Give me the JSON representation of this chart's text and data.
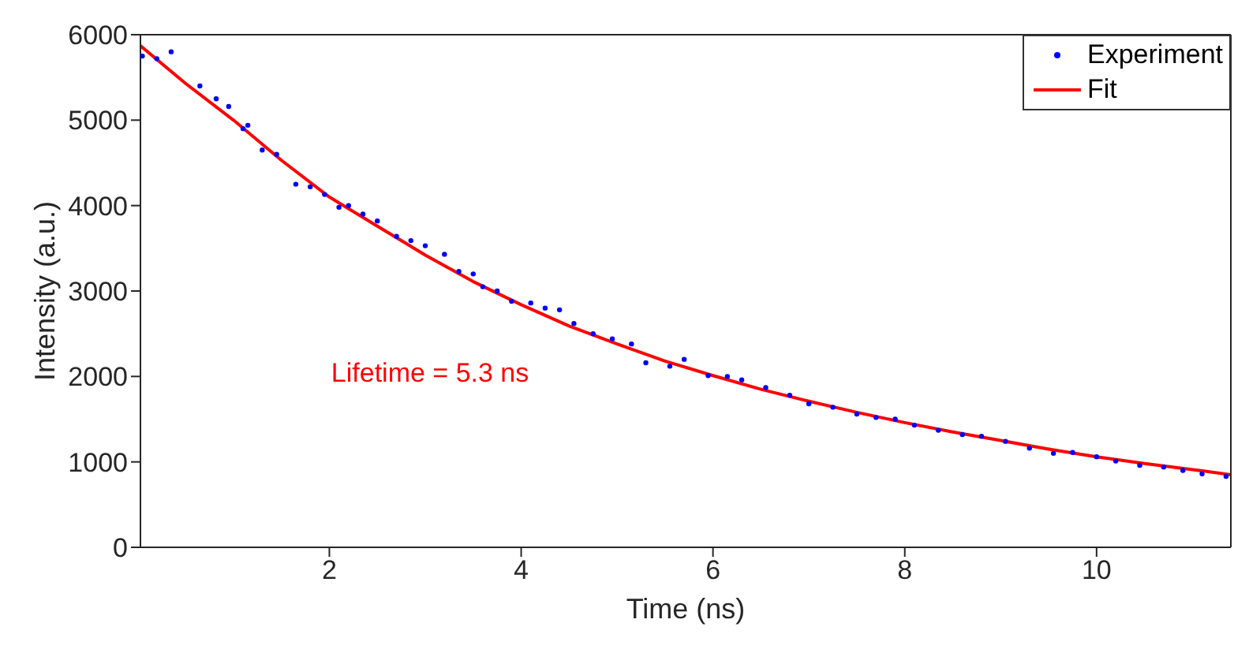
{
  "chart_data": {
    "type": "scatter",
    "xlabel": "Time (ns)",
    "ylabel": "Intensity (a.u.)",
    "xlim": [
      0.03,
      11.4
    ],
    "xticks": [
      2,
      4,
      6,
      8,
      10
    ],
    "ylim": [
      0,
      6000
    ],
    "yticks": [
      0,
      1000,
      2000,
      3000,
      4000,
      5000,
      6000
    ],
    "grid": false,
    "legend": "top right",
    "annotations": [
      "Lifetime = 5.3 ns"
    ],
    "series": [
      {
        "name": "Experiment",
        "color": "#0000ff",
        "marker": "circle",
        "x": [
          0.05,
          0.2,
          0.35,
          0.65,
          0.82,
          0.95,
          1.1,
          1.15,
          1.3,
          1.45,
          1.65,
          1.8,
          1.95,
          2.1,
          2.2,
          2.35,
          2.5,
          2.7,
          2.85,
          3.0,
          3.2,
          3.35,
          3.5,
          3.6,
          3.75,
          3.9,
          4.1,
          4.25,
          4.4,
          4.55,
          4.75,
          4.95,
          5.15,
          5.3,
          5.55,
          5.7,
          5.95,
          6.15,
          6.3,
          6.55,
          6.8,
          7.0,
          7.25,
          7.5,
          7.7,
          7.9,
          8.1,
          8.35,
          8.6,
          8.8,
          9.05,
          9.3,
          9.55,
          9.75,
          10.0,
          10.2,
          10.45,
          10.7,
          10.9,
          11.1,
          11.35
        ],
        "values": [
          5750,
          5720,
          5800,
          5400,
          5250,
          5160,
          4900,
          4940,
          4650,
          4600,
          4250,
          4220,
          4130,
          3980,
          4000,
          3900,
          3820,
          3640,
          3590,
          3530,
          3430,
          3230,
          3200,
          3050,
          3000,
          2880,
          2860,
          2800,
          2780,
          2620,
          2500,
          2440,
          2380,
          2160,
          2120,
          2200,
          2010,
          2000,
          1960,
          1870,
          1780,
          1680,
          1640,
          1560,
          1520,
          1500,
          1430,
          1370,
          1320,
          1300,
          1240,
          1160,
          1100,
          1110,
          1060,
          1010,
          960,
          940,
          900,
          860,
          830
        ]
      },
      {
        "name": "Fit",
        "type": "line",
        "color": "#ff0000",
        "marker": "none",
        "line_style": "solid",
        "x": [
          0.03,
          0.5,
          1,
          1.5,
          2,
          2.5,
          3,
          3.5,
          4,
          4.5,
          5,
          5.5,
          6,
          6.5,
          7,
          7.5,
          8,
          8.5,
          9,
          9.5,
          10,
          10.5,
          11,
          11.4
        ],
        "values": [
          5870,
          5430,
          5000,
          4530,
          4100,
          3760,
          3420,
          3110,
          2840,
          2590,
          2380,
          2180,
          2010,
          1850,
          1710,
          1580,
          1460,
          1350,
          1250,
          1150,
          1060,
          980,
          910,
          850
        ]
      }
    ]
  }
}
